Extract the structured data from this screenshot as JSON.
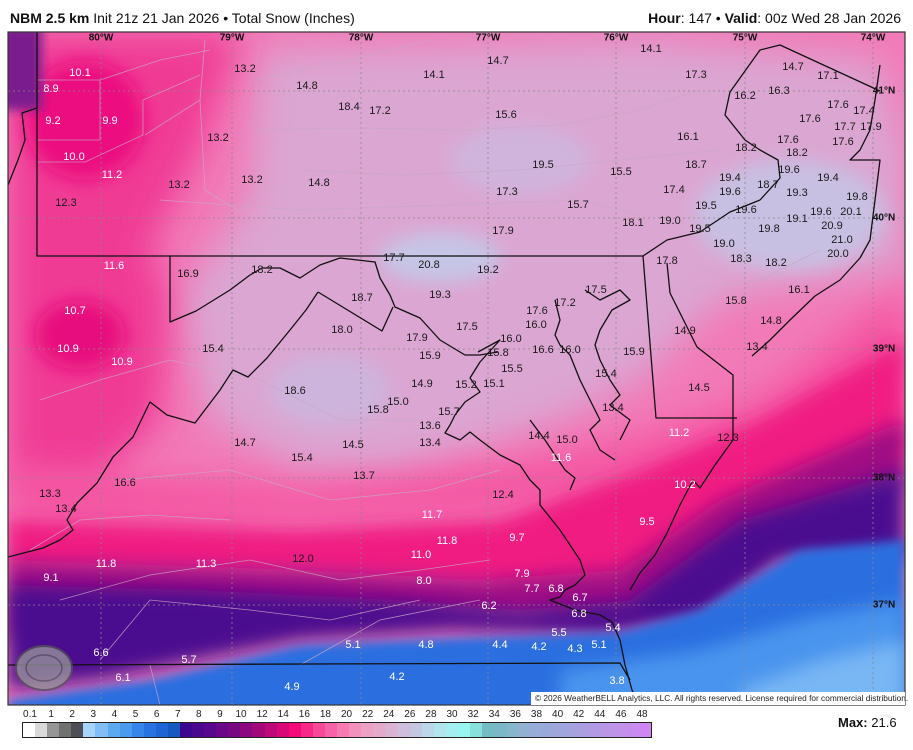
{
  "header": {
    "model": "NBM 2.5 km",
    "init": "Init 21z 21 Jan 2026",
    "separator": "•",
    "product": "Total Snow (Inches)",
    "hour_label": "Hour",
    "hour": "147",
    "valid_label": "Valid",
    "valid": "00z Wed 28 Jan 2026"
  },
  "map": {
    "longitude_labels": [
      "80°W",
      "79°W",
      "78°W",
      "77°W",
      "76°W",
      "75°W",
      "74°W"
    ],
    "latitude_labels": [
      "41°N",
      "40°N",
      "39°N",
      "38°N",
      "37°N"
    ],
    "values": [
      "10.1",
      "8.9",
      "9.2",
      "9.9",
      "10.0",
      "11.2",
      "12.3",
      "13.2",
      "14.8",
      "18.4",
      "17.2",
      "13.2",
      "13.2",
      "13.2",
      "14.8",
      "14.1",
      "14.7",
      "15.6",
      "19.5",
      "17.3",
      "17.9",
      "14.1",
      "17.3",
      "15.5",
      "15.7",
      "16.1",
      "18.7",
      "17.4",
      "18.1",
      "19.0",
      "19.4",
      "19.6",
      "19.5",
      "19.6",
      "18.7",
      "19.5",
      "19.0",
      "16.2",
      "16.3",
      "14.7",
      "17.1",
      "17.6",
      "18.2",
      "18.2",
      "19.6",
      "19.3",
      "19.4",
      "19.1",
      "19.8",
      "17.6",
      "17.6",
      "17.4",
      "17.7",
      "17.9",
      "17.6",
      "19.8",
      "20.1",
      "19.6",
      "20.9",
      "21.0",
      "20.0",
      "18.3",
      "18.2",
      "17.8",
      "11.6",
      "16.9",
      "18.2",
      "17.7",
      "20.8",
      "19.2",
      "19.3",
      "18.7",
      "18.0",
      "10.7",
      "10.9",
      "10.9",
      "15.4",
      "18.6",
      "17.9",
      "15.9",
      "17.5",
      "17.6",
      "16.0",
      "16.0",
      "17.2",
      "17.5",
      "15.8",
      "15.5",
      "15.1",
      "15.2",
      "14.9",
      "15.0",
      "15.8",
      "15.7",
      "13.6",
      "13.4",
      "16.6",
      "16.0",
      "15.9",
      "15.4",
      "13.4",
      "14.4",
      "15.0",
      "11.6",
      "14.7",
      "15.4",
      "14.5",
      "13.7",
      "16.6",
      "13.3",
      "13.4",
      "15.8",
      "16.1",
      "14.8",
      "13.4",
      "14.9",
      "14.5",
      "11.2",
      "12.3",
      "10.2",
      "9.5",
      "12.4",
      "11.7",
      "11.8",
      "11.0",
      "9.7",
      "12.0",
      "11.3",
      "11.8",
      "9.1",
      "8.0",
      "7.9",
      "7.7",
      "6.8",
      "6.7",
      "6.2",
      "6.8",
      "5.4",
      "5.5",
      "4.4",
      "4.2",
      "4.3",
      "5.1",
      "4.8",
      "5.1",
      "6.6",
      "5.7",
      "6.1",
      "4.9",
      "4.2",
      "3.8"
    ],
    "logo_text": "WeatherBELL",
    "copyright": "© 2026 WeatherBELL Analytics, LLC. All rights reserved. License required for commercial distribution."
  },
  "colorbar": {
    "ticks": [
      "0.1",
      "1",
      "2",
      "3",
      "4",
      "5",
      "6",
      "7",
      "8",
      "9",
      "10",
      "12",
      "14",
      "16",
      "18",
      "20",
      "22",
      "24",
      "26",
      "28",
      "30",
      "32",
      "34",
      "36",
      "38",
      "40",
      "42",
      "44",
      "46",
      "48"
    ],
    "colors": [
      "#ffffff",
      "#d9d9d9",
      "#969696",
      "#707070",
      "#4e4e56",
      "#a6d4fa",
      "#82bef5",
      "#5ca9f0",
      "#4a9aee",
      "#3686ea",
      "#2872e2",
      "#1f64d6",
      "#1558c0",
      "#3c0890",
      "#4a0890",
      "#58088e",
      "#680888",
      "#780882",
      "#8c0880",
      "#a20878",
      "#bc0878",
      "#d80878",
      "#f40a78",
      "#f82888",
      "#f84898",
      "#f862a8",
      "#f87ab2",
      "#f490bc",
      "#eca0c4",
      "#e4aacc",
      "#dcb2d2",
      "#d0bcdc",
      "#c4c6e2",
      "#bcd6ea",
      "#b2e4ee",
      "#a4eef2",
      "#98f6f0",
      "#88e0dc",
      "#74bcc4",
      "#7ab8c8",
      "#84b6cc",
      "#92b0d2",
      "#98acd8",
      "#9aa8da",
      "#a0a6dc",
      "#a6a2de",
      "#ac9ee0",
      "#b49ae4",
      "#bc96e6",
      "#c292ea",
      "#c88cee",
      "#d086f2"
    ],
    "max_label": "Max:",
    "max_value": "21.6"
  }
}
